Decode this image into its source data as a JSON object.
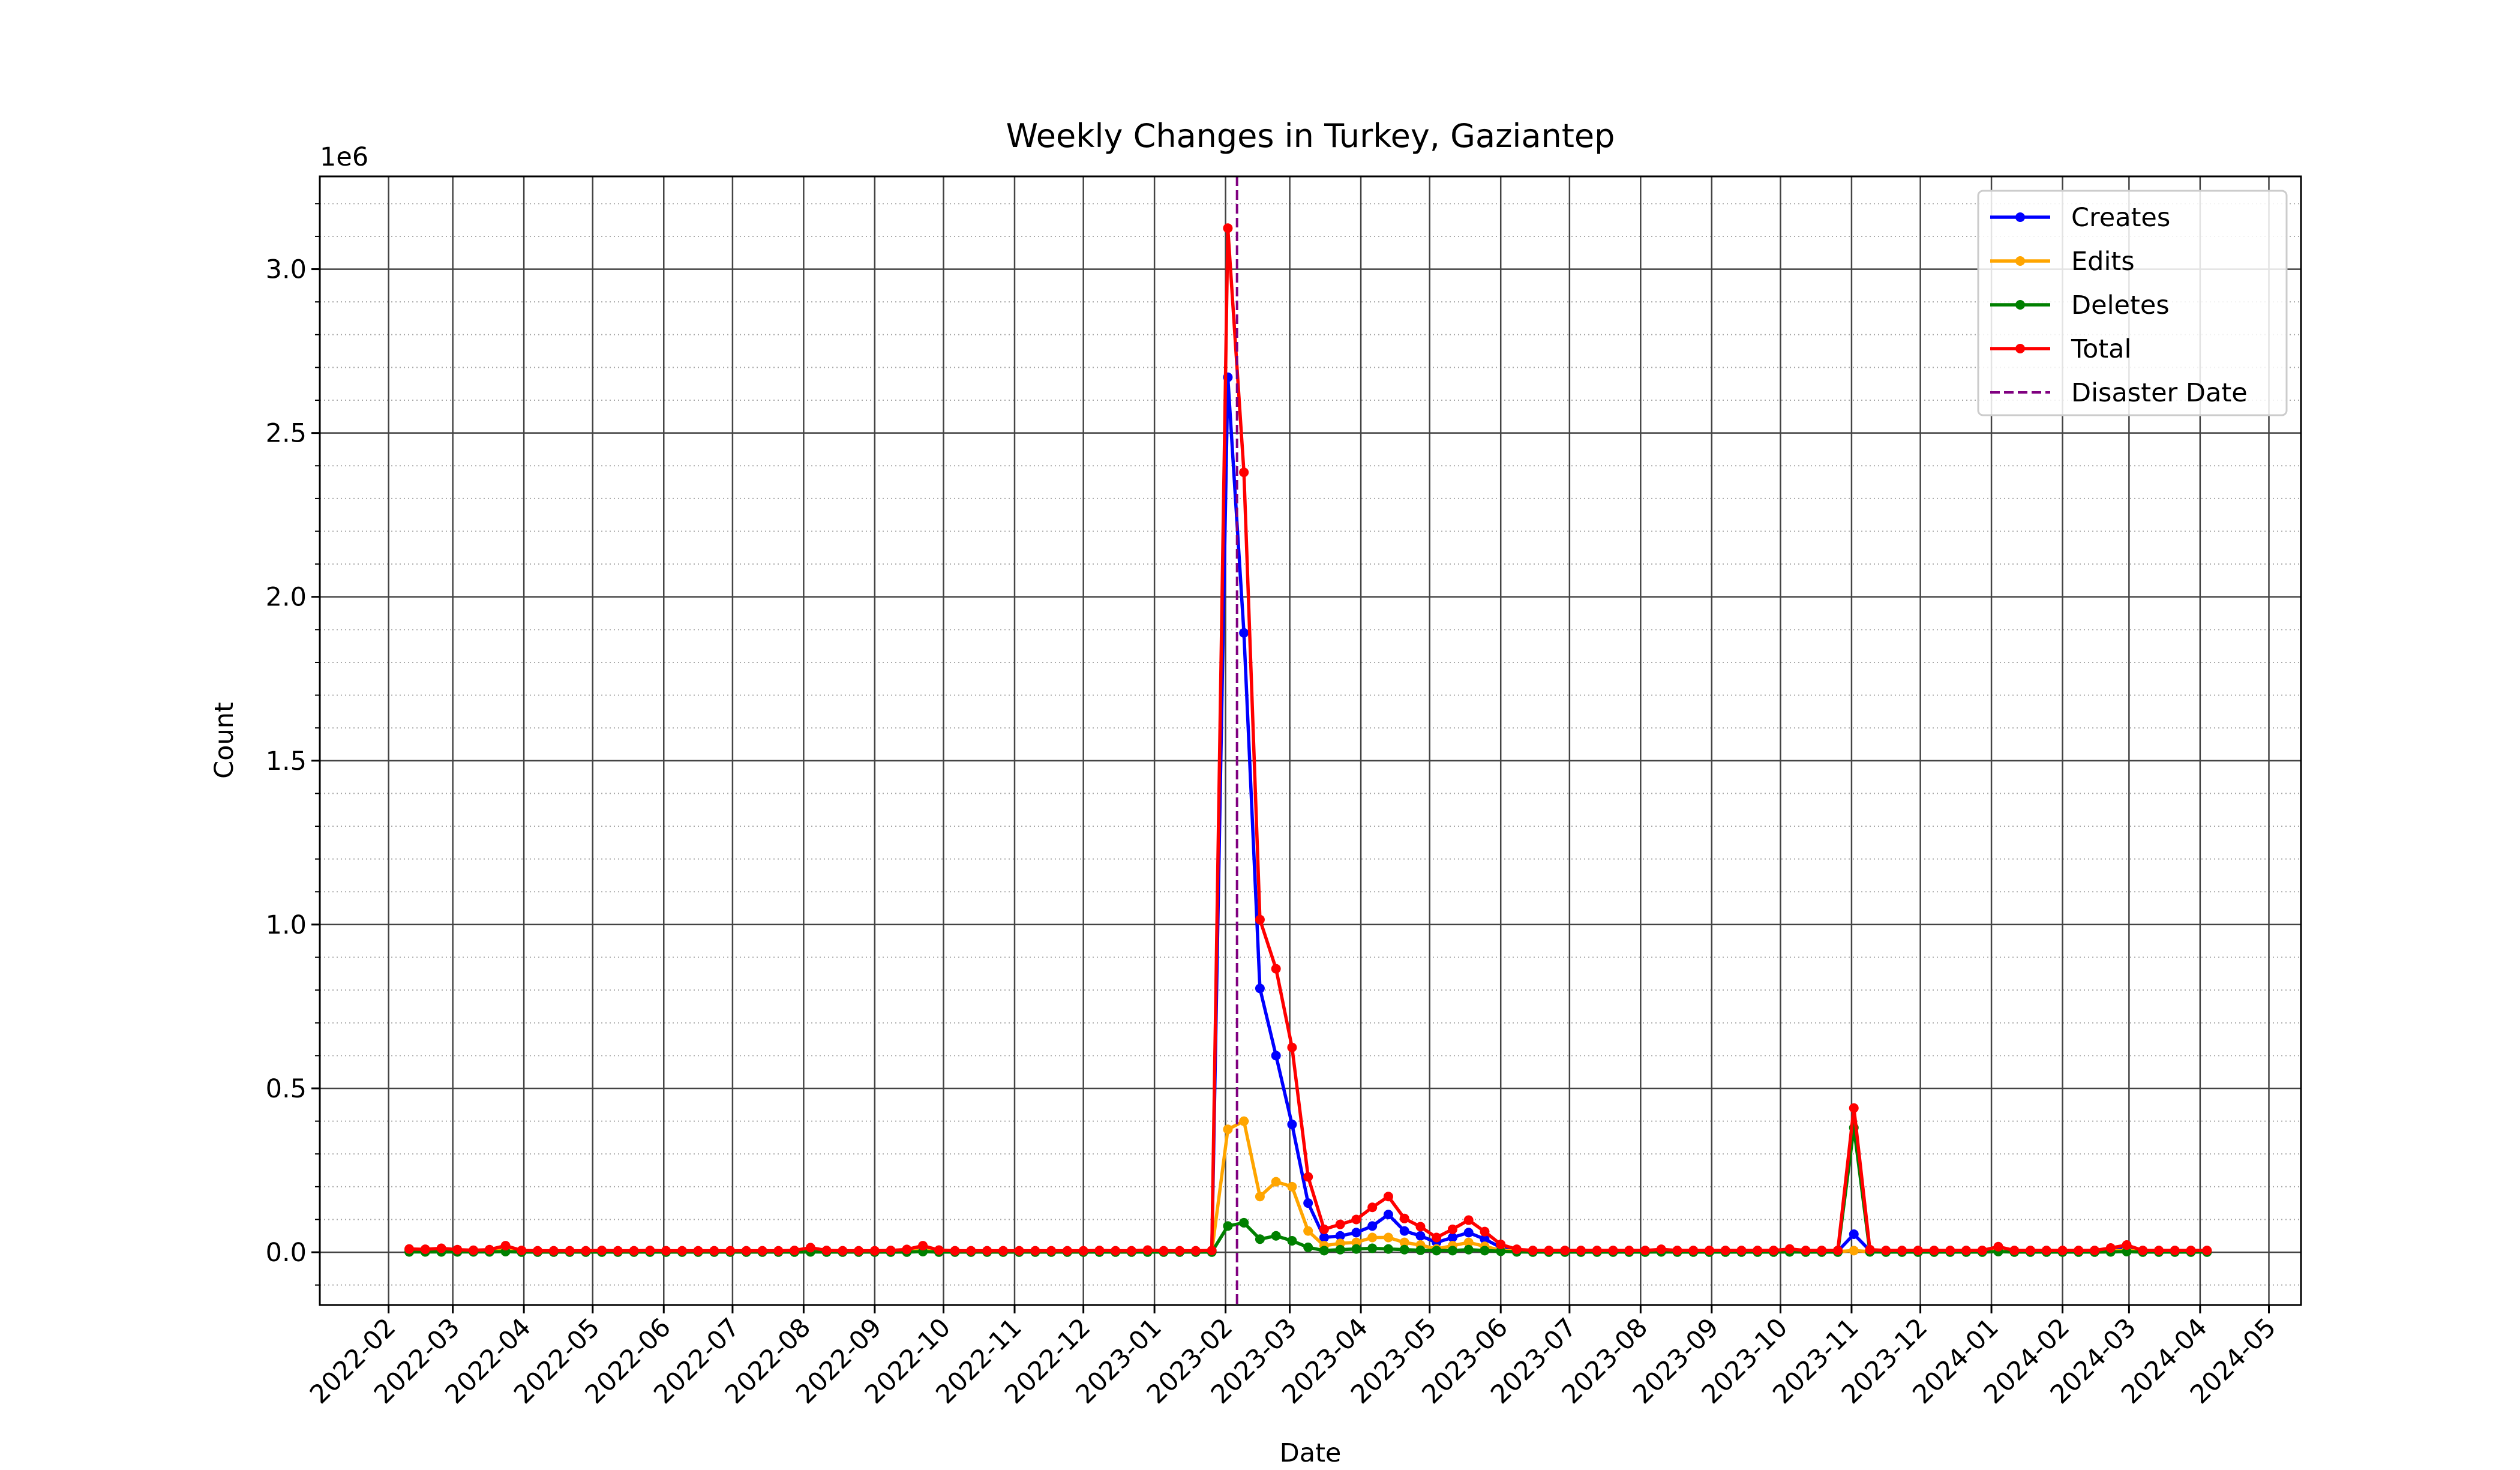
{
  "chart_data": {
    "type": "line",
    "title": "Weekly Changes in Turkey, Gaziantep",
    "x_label": "Date",
    "y_label": "Count",
    "y_offset_label": "1e6",
    "x": [
      "2022-02-10",
      "2022-02-17",
      "2022-02-24",
      "2022-03-03",
      "2022-03-10",
      "2022-03-17",
      "2022-03-24",
      "2022-03-31",
      "2022-04-07",
      "2022-04-14",
      "2022-04-21",
      "2022-04-28",
      "2022-05-05",
      "2022-05-12",
      "2022-05-19",
      "2022-05-26",
      "2022-06-02",
      "2022-06-09",
      "2022-06-16",
      "2022-06-23",
      "2022-06-30",
      "2022-07-07",
      "2022-07-14",
      "2022-07-21",
      "2022-07-28",
      "2022-08-04",
      "2022-08-11",
      "2022-08-18",
      "2022-08-25",
      "2022-09-01",
      "2022-09-08",
      "2022-09-15",
      "2022-09-22",
      "2022-09-29",
      "2022-10-06",
      "2022-10-13",
      "2022-10-20",
      "2022-10-27",
      "2022-11-03",
      "2022-11-10",
      "2022-11-17",
      "2022-11-24",
      "2022-12-01",
      "2022-12-08",
      "2022-12-15",
      "2022-12-22",
      "2022-12-29",
      "2023-01-05",
      "2023-01-12",
      "2023-01-19",
      "2023-01-26",
      "2023-02-02",
      "2023-02-09",
      "2023-02-16",
      "2023-02-23",
      "2023-03-02",
      "2023-03-09",
      "2023-03-16",
      "2023-03-23",
      "2023-03-30",
      "2023-04-06",
      "2023-04-13",
      "2023-04-20",
      "2023-04-27",
      "2023-05-04",
      "2023-05-11",
      "2023-05-18",
      "2023-05-25",
      "2023-06-01",
      "2023-06-08",
      "2023-06-15",
      "2023-06-22",
      "2023-06-29",
      "2023-07-06",
      "2023-07-13",
      "2023-07-20",
      "2023-07-27",
      "2023-08-03",
      "2023-08-10",
      "2023-08-17",
      "2023-08-24",
      "2023-08-31",
      "2023-09-07",
      "2023-09-14",
      "2023-09-21",
      "2023-09-28",
      "2023-10-05",
      "2023-10-12",
      "2023-10-19",
      "2023-10-26",
      "2023-11-02",
      "2023-11-09",
      "2023-11-16",
      "2023-11-23",
      "2023-11-30",
      "2023-12-07",
      "2023-12-14",
      "2023-12-21",
      "2023-12-28",
      "2024-01-04",
      "2024-01-11",
      "2024-01-18",
      "2024-01-25",
      "2024-02-01",
      "2024-02-08",
      "2024-02-15",
      "2024-02-22",
      "2024-02-29",
      "2024-03-07",
      "2024-03-14",
      "2024-03-21",
      "2024-03-28",
      "2024-04-04"
    ],
    "series": [
      {
        "name": "Creates",
        "color": "#0000ff",
        "values": [
          6000,
          5000,
          7000,
          4000,
          3000,
          4000,
          12000,
          3000,
          2000,
          2000,
          2000,
          2000,
          3000,
          2000,
          2000,
          3000,
          2000,
          2000,
          2000,
          2000,
          2000,
          2000,
          2000,
          2000,
          3000,
          9000,
          3000,
          2000,
          2000,
          2000,
          3000,
          5000,
          12000,
          4000,
          2000,
          2000,
          2000,
          2000,
          2000,
          2000,
          2000,
          2000,
          2000,
          3000,
          2000,
          2000,
          4000,
          2000,
          2000,
          2000,
          3000,
          2670000,
          1890000,
          805000,
          600000,
          390000,
          150000,
          45000,
          50000,
          60000,
          80000,
          115000,
          65000,
          50000,
          30000,
          45000,
          60000,
          40000,
          15000,
          5000,
          3000,
          3000,
          3000,
          3000,
          3000,
          3000,
          3000,
          3000,
          5000,
          3000,
          3000,
          3000,
          3000,
          3000,
          3000,
          3000,
          6000,
          3000,
          3000,
          3000,
          55000,
          5000,
          3000,
          3000,
          3000,
          3000,
          3000,
          3000,
          3000,
          10000,
          3000,
          3000,
          3000,
          3000,
          3000,
          3000,
          8000,
          14000,
          3000,
          3000,
          3000,
          3000,
          3000
        ]
      },
      {
        "name": "Edits",
        "color": "#ffa500",
        "values": [
          3000,
          3000,
          4000,
          3000,
          2000,
          3000,
          6000,
          2000,
          2000,
          2000,
          2000,
          2000,
          2000,
          2000,
          2000,
          2000,
          2000,
          2000,
          2000,
          2000,
          2000,
          2000,
          2000,
          2000,
          2000,
          4000,
          2000,
          2000,
          2000,
          2000,
          2000,
          3000,
          6000,
          2000,
          2000,
          2000,
          2000,
          2000,
          2000,
          2000,
          2000,
          2000,
          2000,
          2000,
          2000,
          2000,
          2000,
          2000,
          2000,
          2000,
          2000,
          375000,
          400000,
          170000,
          215000,
          200000,
          65000,
          20000,
          27000,
          30000,
          45000,
          45000,
          30000,
          22000,
          10000,
          20000,
          30000,
          18000,
          6000,
          3000,
          2000,
          2000,
          2000,
          2000,
          2000,
          2000,
          2000,
          2000,
          3000,
          2000,
          2000,
          2000,
          2000,
          2000,
          2000,
          2000,
          3000,
          2000,
          2000,
          2000,
          5000,
          2000,
          2000,
          2000,
          2000,
          2000,
          2000,
          2000,
          2000,
          5000,
          2000,
          2000,
          2000,
          2000,
          2000,
          2000,
          4000,
          6000,
          2000,
          2000,
          2000,
          2000,
          2000
        ]
      },
      {
        "name": "Deletes",
        "color": "#008000",
        "values": [
          1000,
          1000,
          1000,
          1000,
          1000,
          1000,
          2000,
          500,
          500,
          500,
          500,
          500,
          500,
          500,
          500,
          500,
          500,
          500,
          500,
          500,
          500,
          500,
          500,
          500,
          500,
          1000,
          500,
          500,
          500,
          500,
          500,
          500,
          2000,
          500,
          500,
          500,
          500,
          500,
          500,
          500,
          500,
          500,
          500,
          500,
          500,
          500,
          500,
          500,
          500,
          500,
          500,
          80000,
          90000,
          40000,
          50000,
          35000,
          15000,
          5000,
          8000,
          10000,
          12000,
          10000,
          8000,
          6000,
          5000,
          5000,
          8000,
          5000,
          3000,
          1000,
          500,
          500,
          500,
          500,
          500,
          500,
          500,
          500,
          1000,
          500,
          500,
          500,
          500,
          500,
          500,
          500,
          1000,
          500,
          500,
          500,
          380000,
          1000,
          500,
          500,
          500,
          500,
          500,
          500,
          500,
          2000,
          500,
          500,
          500,
          500,
          500,
          500,
          1000,
          2000,
          500,
          500,
          500,
          500,
          500
        ]
      },
      {
        "name": "Total",
        "color": "#ff0000",
        "values": [
          10000,
          9000,
          12000,
          8000,
          6000,
          8000,
          20000,
          5500,
          4500,
          4500,
          4500,
          4500,
          5500,
          4500,
          4500,
          5500,
          4500,
          4500,
          4500,
          4500,
          4500,
          4500,
          4500,
          4500,
          5500,
          14000,
          5500,
          4500,
          4500,
          4500,
          5500,
          8500,
          20000,
          6500,
          4500,
          4500,
          4500,
          4500,
          4500,
          4500,
          4500,
          4500,
          4500,
          5500,
          4500,
          4500,
          6500,
          4500,
          4500,
          4500,
          5500,
          3125000,
          2380000,
          1015000,
          865000,
          625000,
          230000,
          70000,
          85000,
          100000,
          137000,
          170000,
          103000,
          78000,
          45000,
          70000,
          98000,
          63000,
          24000,
          9000,
          5500,
          5500,
          5500,
          5500,
          5500,
          5500,
          5500,
          5500,
          9000,
          5500,
          5500,
          5500,
          5500,
          5500,
          5500,
          5500,
          10000,
          5500,
          5500,
          5500,
          440000,
          8000,
          5500,
          5500,
          5500,
          5500,
          5500,
          5500,
          5500,
          17000,
          5500,
          5500,
          5500,
          5500,
          5500,
          5500,
          13000,
          22000,
          5500,
          5500,
          5500,
          5500,
          5500
        ]
      }
    ],
    "vline": {
      "name": "Disaster Date",
      "x": "2023-02-06",
      "color": "#800080"
    },
    "xlim": [
      "2022-01-02",
      "2024-05-15"
    ],
    "xticks": [
      "2022-02",
      "2022-03",
      "2022-04",
      "2022-05",
      "2022-06",
      "2022-07",
      "2022-08",
      "2022-09",
      "2022-10",
      "2022-11",
      "2022-12",
      "2023-01",
      "2023-02",
      "2023-03",
      "2023-04",
      "2023-05",
      "2023-06",
      "2023-07",
      "2023-08",
      "2023-09",
      "2023-10",
      "2023-11",
      "2023-12",
      "2024-01",
      "2024-02",
      "2024-03",
      "2024-04",
      "2024-05"
    ],
    "ylim": [
      -161000,
      3283000
    ],
    "yticks": [
      {
        "value": 0,
        "label": "0.0"
      },
      {
        "value": 500000,
        "label": "0.5"
      },
      {
        "value": 1000000,
        "label": "1.0"
      },
      {
        "value": 1500000,
        "label": "1.5"
      },
      {
        "value": 2000000,
        "label": "2.0"
      },
      {
        "value": 2500000,
        "label": "2.5"
      },
      {
        "value": 3000000,
        "label": "3.0"
      }
    ],
    "yminorticks": [
      -100000,
      100000,
      200000,
      300000,
      400000,
      600000,
      700000,
      800000,
      900000,
      1100000,
      1200000,
      1300000,
      1400000,
      1600000,
      1700000,
      1800000,
      1900000,
      2100000,
      2200000,
      2300000,
      2400000,
      2600000,
      2700000,
      2800000,
      2900000,
      3100000,
      3200000
    ],
    "grid": true,
    "legend": "upper right"
  }
}
